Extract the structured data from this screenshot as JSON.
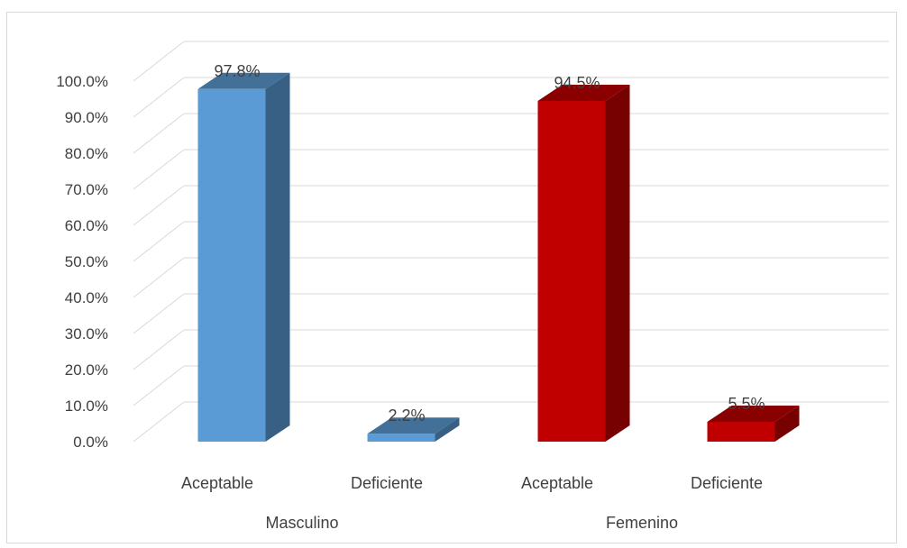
{
  "chart_data": {
    "type": "bar",
    "style": "3d-column",
    "groups": [
      {
        "name": "Masculino",
        "categories": [
          "Aceptable",
          "Deficiente"
        ],
        "values": [
          97.8,
          2.2
        ],
        "color": "#5b9bd5"
      },
      {
        "name": "Femenino",
        "categories": [
          "Aceptable",
          "Deficiente"
        ],
        "values": [
          94.5,
          5.5
        ],
        "color": "#c00000"
      }
    ],
    "data_labels": [
      [
        "97.8%",
        "2.2%"
      ],
      [
        "94.5%",
        "5.5%"
      ]
    ],
    "y_ticks": [
      "0.0%",
      "10.0%",
      "20.0%",
      "30.0%",
      "40.0%",
      "50.0%",
      "60.0%",
      "70.0%",
      "80.0%",
      "90.0%",
      "100.0%"
    ],
    "ylim": [
      0,
      100
    ],
    "grid": true,
    "legend": "none",
    "title": "",
    "xlabel": "",
    "ylabel": ""
  }
}
